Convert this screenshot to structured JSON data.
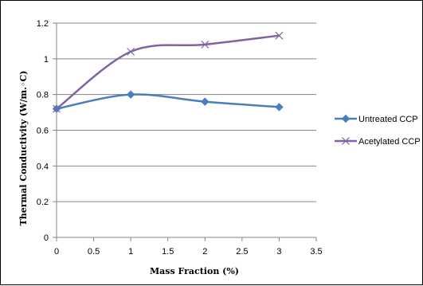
{
  "chart_data": {
    "type": "line",
    "xlabel": "Mass Fraction (%)",
    "ylabel": "Thermal Conductivity (W/m.◦C)",
    "xlim": [
      0,
      3.5
    ],
    "ylim": [
      0,
      1.2
    ],
    "x_ticks": [
      "0",
      "0.5",
      "1",
      "1.5",
      "2",
      "2.5",
      "3",
      "3.5"
    ],
    "y_ticks": [
      "0",
      "0.2",
      "0.4",
      "0.6",
      "0.8",
      "1",
      "1.2"
    ],
    "grid": "horizontal",
    "legend_position": "right",
    "series": [
      {
        "name": "Untreated CCP",
        "color": "#4a7ebb",
        "marker": "diamond",
        "x": [
          0,
          1,
          2,
          3
        ],
        "y": [
          0.72,
          0.8,
          0.76,
          0.73
        ]
      },
      {
        "name": "Acetylated CCP",
        "color": "#8064a2",
        "marker": "x",
        "x": [
          0,
          1,
          2,
          3
        ],
        "y": [
          0.72,
          1.04,
          1.08,
          1.13
        ]
      }
    ]
  }
}
